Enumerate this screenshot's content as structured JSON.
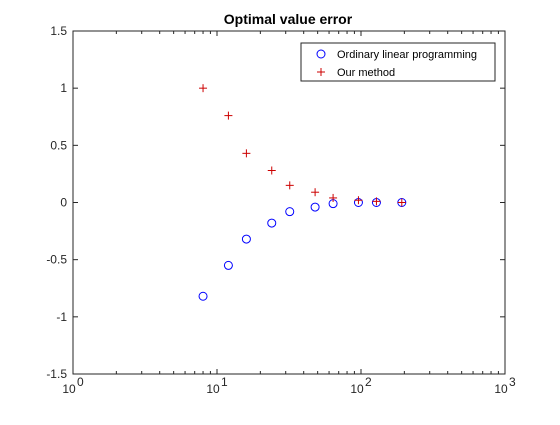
{
  "chart_data": {
    "type": "scatter",
    "title": "Optimal value error",
    "xlabel": "",
    "ylabel": "",
    "xscale": "log",
    "xlim": [
      1,
      1000
    ],
    "ylim": [
      -1.5,
      1.5
    ],
    "grid": false,
    "legend_position": "top-right",
    "x_ticks": [
      {
        "value": 1,
        "label": "10",
        "exp": "0"
      },
      {
        "value": 10,
        "label": "10",
        "exp": "1"
      },
      {
        "value": 100,
        "label": "10",
        "exp": "2"
      },
      {
        "value": 1000,
        "label": "10",
        "exp": "3"
      }
    ],
    "y_ticks": [
      {
        "value": -1.5,
        "label": "-1.5"
      },
      {
        "value": -1,
        "label": "-1"
      },
      {
        "value": -0.5,
        "label": "-0.5"
      },
      {
        "value": 0,
        "label": "0"
      },
      {
        "value": 0.5,
        "label": "0.5"
      },
      {
        "value": 1,
        "label": "1"
      },
      {
        "value": 1.5,
        "label": "1.5"
      }
    ],
    "series": [
      {
        "name": "Ordinary linear programming",
        "marker": "circle",
        "color": "#0000ff",
        "x": [
          8,
          12,
          16,
          24,
          32,
          48,
          64,
          96,
          128,
          192
        ],
        "y": [
          -0.82,
          -0.55,
          -0.32,
          -0.18,
          -0.08,
          -0.04,
          -0.01,
          0.0,
          0.0,
          0.0
        ]
      },
      {
        "name": "Our method",
        "marker": "plus",
        "color": "#cc0000",
        "x": [
          8,
          12,
          16,
          24,
          32,
          48,
          64,
          96,
          128,
          192
        ],
        "y": [
          1.0,
          0.76,
          0.43,
          0.28,
          0.15,
          0.09,
          0.04,
          0.02,
          0.01,
          0.0
        ]
      }
    ]
  }
}
